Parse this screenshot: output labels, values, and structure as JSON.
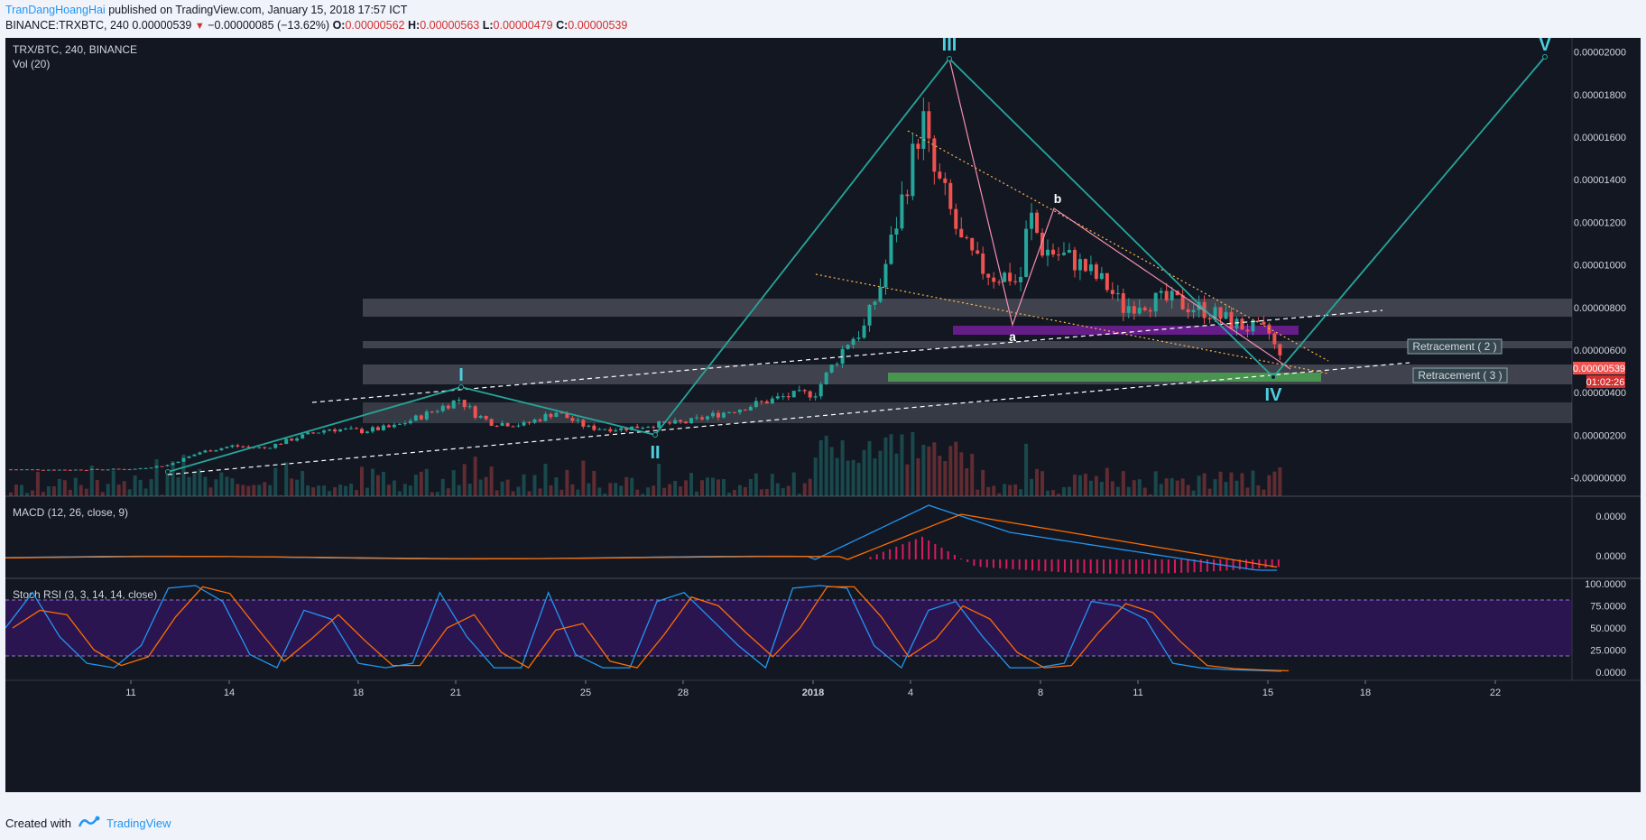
{
  "header": {
    "author": "TranDangHoangHai",
    "published": "published on TradingView.com, January 15, 2018 17:57 ICT",
    "symbol": "BINANCE:TRXBTC, 240",
    "last": "0.00000539",
    "change": "−0.00000085 (−13.62%)",
    "o_label": "O:",
    "o_value": "0.00000562",
    "h_label": "H:",
    "h_value": "0.00000563",
    "l_label": "L:",
    "l_value": "0.00000479",
    "c_label": "C:",
    "c_value": "0.00000539"
  },
  "legend": {
    "symbol": "TRX/BTC, 240, BINANCE",
    "volume": "Vol (20)",
    "macd": "MACD (12, 26, close, 9)",
    "stoch": "Stoch RSI (3, 3, 14, 14, close)"
  },
  "footer": {
    "created": "Created with",
    "brand": "TradingView"
  },
  "colors": {
    "background": "#131722",
    "up": "#26a69a",
    "down": "#ef5350",
    "wave": "#2196a8",
    "wave_label": "#4dd0e1",
    "zone": "#787b86",
    "green_zone": "#4caf50",
    "purple_zone": "#7b1fa2",
    "macd": "#2196f3",
    "signal": "#ff6d00",
    "hist": "#d81b60",
    "stoch_band": "#4a148c"
  },
  "chart_data": {
    "type": "candlestick",
    "title": "TRX/BTC, 240, BINANCE",
    "price_axis": [
      "0.00002000",
      "0.00001800",
      "0.00001600",
      "0.00001400",
      "0.00001200",
      "0.00001000",
      "0.00000800",
      "0.00000600",
      "0.00000400",
      "0.00000200",
      "-0.00000000"
    ],
    "ylim": [
      -1e-07,
      2.1e-05
    ],
    "x_ticks": [
      "11",
      "14",
      "18",
      "21",
      "25",
      "28",
      "2018",
      "4",
      "8",
      "11",
      "15",
      "18",
      "22"
    ],
    "close_series": [
      [
        0,
        4e-07
      ],
      [
        2,
        3.8e-07
      ],
      [
        4,
        4.2e-07
      ],
      [
        5,
        6e-07
      ],
      [
        6,
        1.2e-06
      ],
      [
        7,
        1.5e-06
      ],
      [
        8,
        1.4e-06
      ],
      [
        9,
        1.9e-06
      ],
      [
        10,
        2.3e-06
      ],
      [
        11,
        2.2e-06
      ],
      [
        12,
        2.4e-06
      ],
      [
        13,
        3e-06
      ],
      [
        14,
        3.7e-06
      ],
      [
        14.5,
        3e-06
      ],
      [
        15,
        2.6e-06
      ],
      [
        16,
        2.5e-06
      ],
      [
        17,
        3.1e-06
      ],
      [
        17.5,
        2.7e-06
      ],
      [
        18,
        2.35e-06
      ],
      [
        19,
        2.3e-06
      ],
      [
        20,
        2.5e-06
      ],
      [
        21,
        2.6e-06
      ],
      [
        22,
        3e-06
      ],
      [
        23,
        3.4e-06
      ],
      [
        24,
        3.8e-06
      ],
      [
        25,
        4e-06
      ],
      [
        25.5,
        5.2e-06
      ],
      [
        26,
        6.4e-06
      ],
      [
        26.5,
        7e-06
      ],
      [
        27,
        9e-06
      ],
      [
        27.5,
        1.2e-05
      ],
      [
        28,
        1.5e-05
      ],
      [
        28.3,
        1.7e-05
      ],
      [
        28.6,
        1.45e-05
      ],
      [
        29,
        1.32e-05
      ],
      [
        29.5,
        1.1e-05
      ],
      [
        30,
        1e-05
      ],
      [
        30.5,
        9.5e-06
      ],
      [
        31,
        9.5e-06
      ],
      [
        31.3,
        9e-06
      ],
      [
        31.6,
        1.25e-05
      ],
      [
        32,
        1.08e-05
      ],
      [
        33,
        1.02e-05
      ],
      [
        34,
        9e-06
      ],
      [
        34.5,
        8e-06
      ],
      [
        35,
        8.3e-06
      ],
      [
        36,
        8.3e-06
      ],
      [
        37,
        7.9e-06
      ],
      [
        38,
        7.2e-06
      ],
      [
        39,
        6.8e-06
      ],
      [
        39.4,
        5.39e-06
      ]
    ],
    "last_price": "0.00000539",
    "countdown": "01:02:26",
    "wave_labels": [
      "I",
      "II",
      "III",
      "IV",
      "V"
    ],
    "correction_labels": [
      "a",
      "b"
    ],
    "annotations": [
      "Retracement ( 2 )",
      "Retracement ( 3 )"
    ],
    "macd_axis": [
      "0.0000",
      "0.0000"
    ],
    "stoch_axis": [
      "100.0000",
      "75.0000",
      "50.0000",
      "25.0000",
      "0.0000"
    ]
  }
}
